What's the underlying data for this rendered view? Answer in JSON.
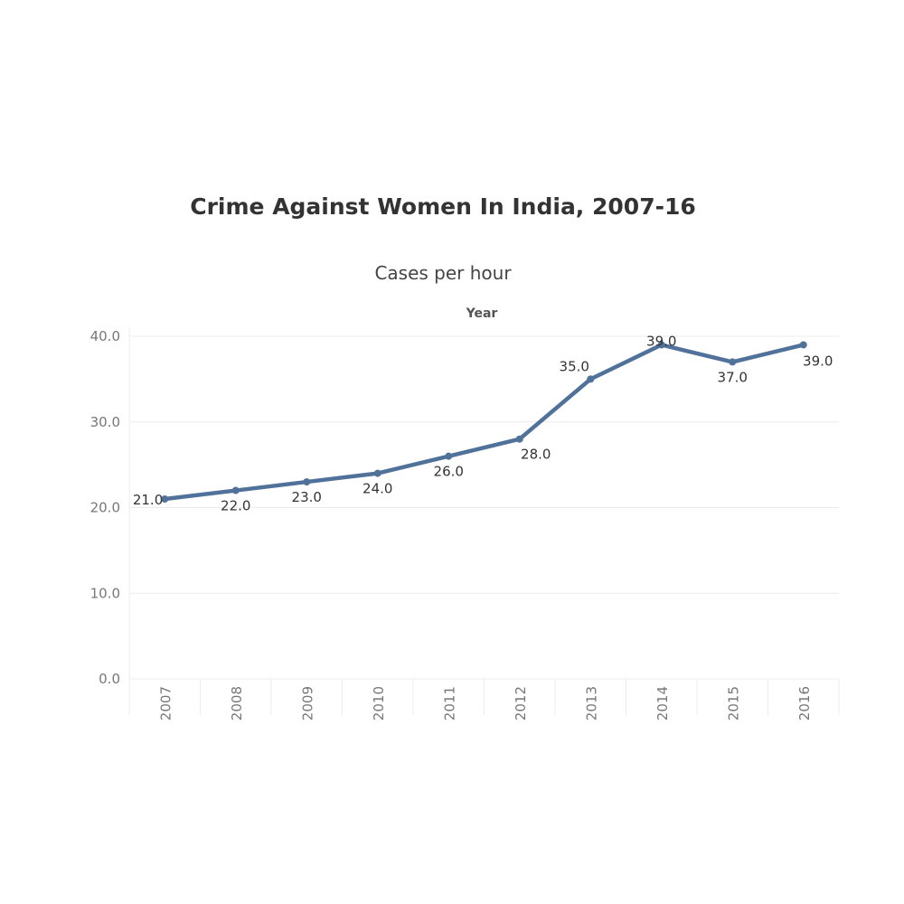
{
  "title": "Crime Against Women In India, 2007-16",
  "subtitle": "Cases per hour",
  "x_header": "Year",
  "colors": {
    "line": "#50729a",
    "grid": "#ececec"
  },
  "chart_data": {
    "type": "line",
    "title": "Crime Against Women In India, 2007-16",
    "subtitle": "Cases per hour",
    "xlabel": "Year",
    "ylabel": "",
    "categories": [
      "2007",
      "2008",
      "2009",
      "2010",
      "2011",
      "2012",
      "2013",
      "2014",
      "2015",
      "2016"
    ],
    "values": [
      21.0,
      22.0,
      23.0,
      24.0,
      26.0,
      28.0,
      35.0,
      39.0,
      37.0,
      39.0
    ],
    "data_labels": [
      "21.0",
      "22.0",
      "23.0",
      "24.0",
      "26.0",
      "28.0",
      "35.0",
      "39.0",
      "37.0",
      "39.0"
    ],
    "ylim": [
      0,
      40
    ],
    "yticks": [
      "0.0",
      "10.0",
      "20.0",
      "30.0",
      "40.0"
    ],
    "grid": true,
    "legend": "none"
  }
}
